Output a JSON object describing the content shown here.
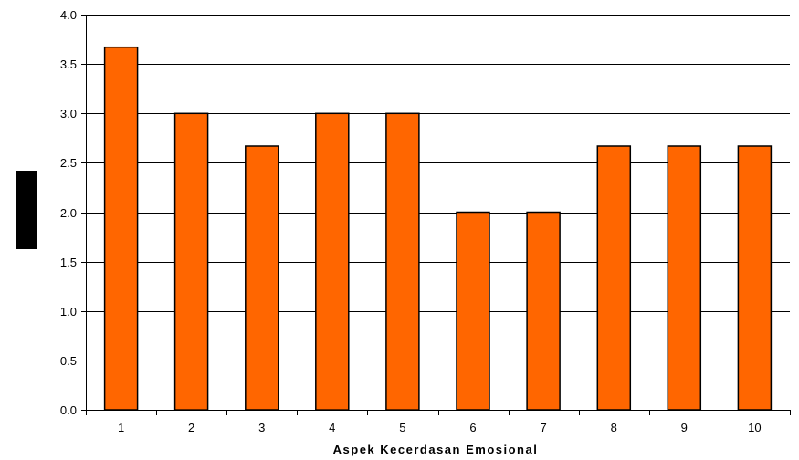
{
  "chart_data": {
    "type": "bar",
    "title": "",
    "xlabel": "Aspek Kecerdasan Emosional",
    "ylabel": "",
    "categories": [
      "1",
      "2",
      "3",
      "4",
      "5",
      "6",
      "7",
      "8",
      "9",
      "10"
    ],
    "values": [
      3.67,
      3.0,
      2.67,
      3.0,
      3.0,
      2.0,
      2.0,
      2.67,
      2.67,
      2.67
    ],
    "ylim": [
      0,
      4
    ],
    "yticks": [
      "0.0",
      "0.5",
      "1.0",
      "1.5",
      "2.0",
      "2.5",
      "3.0",
      "3.5",
      "4.0"
    ],
    "grid": true,
    "legend": "none",
    "colors": {
      "bar_fill": "#ff6600",
      "bar_stroke": "#000000",
      "grid": "#000000",
      "axis": "#000000",
      "ylabel_box": "#000000"
    }
  }
}
